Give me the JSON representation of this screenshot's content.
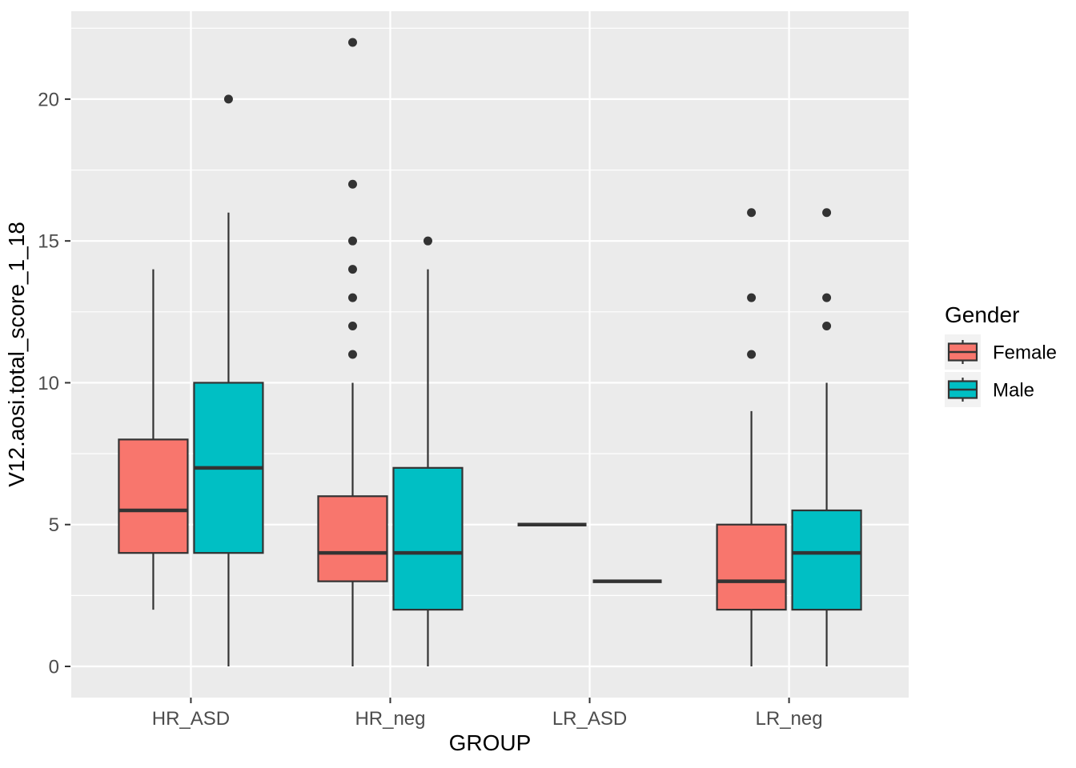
{
  "chart_data": {
    "type": "boxplot",
    "title": "",
    "xlabel": "GROUP",
    "ylabel": "V12.aosi.total_score_1_18",
    "categories": [
      "HR_ASD",
      "HR_neg",
      "LR_ASD",
      "LR_neg"
    ],
    "y_ticks": [
      0,
      5,
      10,
      15,
      20
    ],
    "y_minor_ticks": [
      2.5,
      7.5,
      12.5,
      17.5,
      22.5
    ],
    "ylim": [
      -1.1,
      23.1
    ],
    "grid": "on",
    "legend": {
      "title": "Gender",
      "position": "right",
      "entries": [
        {
          "label": "Female",
          "color": "#F8766D"
        },
        {
          "label": "Male",
          "color": "#00BFC4"
        }
      ]
    },
    "series": [
      {
        "name": "Female",
        "color": "#F8766D",
        "boxes": [
          {
            "category": "HR_ASD",
            "whisker_low": 2,
            "q1": 4,
            "median": 5.5,
            "q3": 8,
            "whisker_high": 14,
            "outliers": []
          },
          {
            "category": "HR_neg",
            "whisker_low": 0,
            "q1": 3,
            "median": 4,
            "q3": 6,
            "whisker_high": 10,
            "outliers": [
              11,
              12,
              13,
              14,
              15,
              17,
              22
            ]
          },
          {
            "category": "LR_ASD",
            "whisker_low": 5,
            "q1": 5,
            "median": 5,
            "q3": 5,
            "whisker_high": 5,
            "outliers": []
          },
          {
            "category": "LR_neg",
            "whisker_low": 0,
            "q1": 2,
            "median": 3,
            "q3": 5,
            "whisker_high": 9,
            "outliers": [
              11,
              13,
              16
            ]
          }
        ]
      },
      {
        "name": "Male",
        "color": "#00BFC4",
        "boxes": [
          {
            "category": "HR_ASD",
            "whisker_low": 0,
            "q1": 4,
            "median": 7,
            "q3": 10,
            "whisker_high": 16,
            "outliers": [
              20
            ]
          },
          {
            "category": "HR_neg",
            "whisker_low": 0,
            "q1": 2,
            "median": 4,
            "q3": 7,
            "whisker_high": 14,
            "outliers": [
              15
            ]
          },
          {
            "category": "LR_ASD",
            "whisker_low": 3,
            "q1": 3,
            "median": 3,
            "q3": 3,
            "whisker_high": 3,
            "outliers": []
          },
          {
            "category": "LR_neg",
            "whisker_low": 0,
            "q1": 2,
            "median": 4,
            "q3": 5.5,
            "whisker_high": 10,
            "outliers": [
              12,
              13,
              16
            ]
          }
        ]
      }
    ],
    "colors": {
      "panel_background": "#EBEBEB",
      "gridline": "#FFFFFF",
      "box_border": "#333333",
      "median_line": "#333333",
      "whisker": "#333333",
      "outlier_dot": "#333333",
      "tick_mark": "#333333",
      "tick_label_text": "#4D4D4D",
      "title_text": "#000000",
      "legend_key_background": "#F2F2F2"
    }
  }
}
